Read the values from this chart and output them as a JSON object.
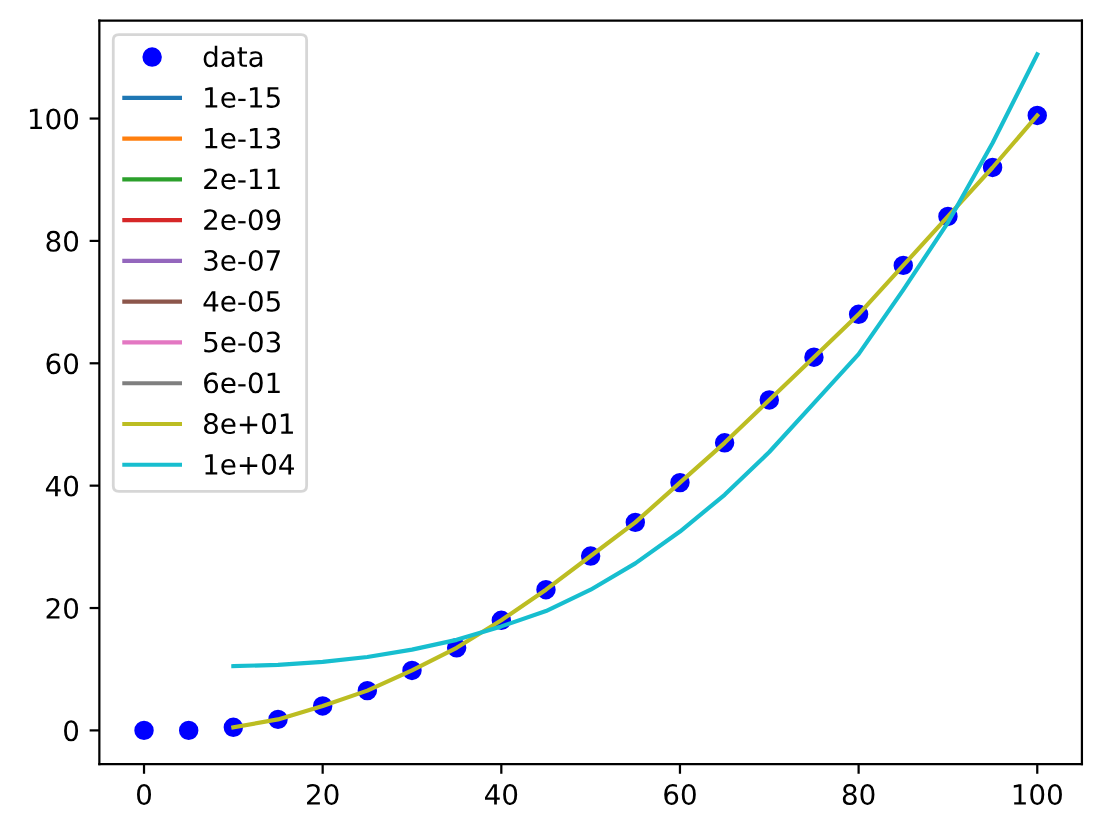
{
  "chart_data": {
    "type": "line",
    "xlim": [
      -5,
      105
    ],
    "ylim": [
      -5.5,
      116
    ],
    "xticks": [
      0,
      20,
      40,
      60,
      80,
      100
    ],
    "yticks": [
      0,
      20,
      40,
      60,
      80,
      100
    ],
    "grid": false,
    "legend": "top left",
    "series": [
      {
        "name": "data",
        "type": "scatter",
        "marker": "circle",
        "color": "#0000ff",
        "x": [
          0,
          5,
          10,
          15,
          20,
          25,
          30,
          35,
          40,
          45,
          50,
          55,
          60,
          65,
          70,
          75,
          80,
          85,
          90,
          95,
          100
        ],
        "values": [
          0,
          0,
          0.5,
          1.8,
          4,
          6.5,
          9.8,
          13.5,
          18,
          23,
          28.5,
          34,
          40.5,
          47,
          54,
          61,
          68,
          76,
          84,
          92,
          100.5
        ]
      },
      {
        "name": "1e-15",
        "color": "#1f77b4"
      },
      {
        "name": "1e-13",
        "color": "#ff7f0e"
      },
      {
        "name": "2e-11",
        "color": "#2ca02c"
      },
      {
        "name": "2e-09",
        "color": "#d62728"
      },
      {
        "name": "3e-07",
        "color": "#9467bd"
      },
      {
        "name": "4e-05",
        "color": "#8c564b"
      },
      {
        "name": "5e-03",
        "color": "#e377c2"
      },
      {
        "name": "6e-01",
        "color": "#7f7f7f"
      },
      {
        "name": "8e+01",
        "color": "#bcbd22",
        "x": [
          10,
          15,
          20,
          25,
          30,
          35,
          40,
          45,
          50,
          55,
          60,
          65,
          70,
          75,
          80,
          85,
          90,
          95,
          100
        ],
        "values": [
          0.5,
          1.8,
          4,
          6.5,
          9.8,
          13.5,
          18,
          23,
          28.5,
          34,
          40.5,
          47,
          54,
          61,
          68,
          76,
          84,
          92,
          100.5
        ]
      },
      {
        "name": "1e+04",
        "color": "#17becf",
        "x": [
          10,
          15,
          20,
          25,
          30,
          35,
          40,
          45,
          50,
          55,
          60,
          65,
          70,
          75,
          80,
          85,
          90,
          95,
          100
        ],
        "values": [
          10.5,
          10.7,
          11.2,
          12,
          13.2,
          14.8,
          17,
          19.5,
          23,
          27.3,
          32.5,
          38.5,
          45.5,
          53.5,
          61.5,
          72,
          83,
          96,
          110.5
        ]
      }
    ]
  }
}
